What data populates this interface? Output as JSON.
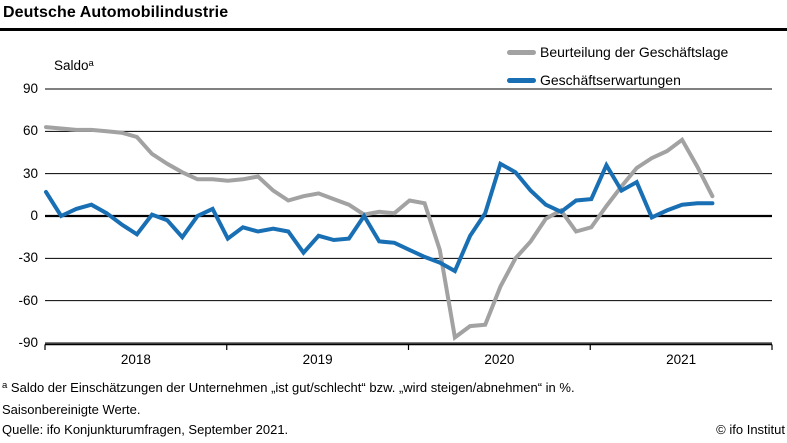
{
  "header": {
    "title": "Deutsche Automobilindustrie"
  },
  "chart_data": {
    "type": "line",
    "title": "Deutsche Automobilindustrie",
    "ylabel": "Saldo",
    "ylabel_superscript": "a",
    "ylim": [
      -90,
      90
    ],
    "yticks": [
      90,
      60,
      30,
      0,
      -30,
      -60,
      -90
    ],
    "grid": true,
    "legend_position": "top-right",
    "x_axis_year_labels": [
      "2018",
      "2019",
      "2020",
      "2021"
    ],
    "x_domain_months": 48,
    "months": [
      "2018-01",
      "2018-02",
      "2018-03",
      "2018-04",
      "2018-05",
      "2018-06",
      "2018-07",
      "2018-08",
      "2018-09",
      "2018-10",
      "2018-11",
      "2018-12",
      "2019-01",
      "2019-02",
      "2019-03",
      "2019-04",
      "2019-05",
      "2019-06",
      "2019-07",
      "2019-08",
      "2019-09",
      "2019-10",
      "2019-11",
      "2019-12",
      "2020-01",
      "2020-02",
      "2020-03",
      "2020-04",
      "2020-05",
      "2020-06",
      "2020-07",
      "2020-08",
      "2020-09",
      "2020-10",
      "2020-11",
      "2020-12",
      "2021-01",
      "2021-02",
      "2021-03",
      "2021-04",
      "2021-05",
      "2021-06",
      "2021-07",
      "2021-08",
      "2021-09"
    ],
    "series": [
      {
        "name": "Beurteilung der Geschäftslage",
        "color": "#a2a2a2",
        "values": [
          63,
          62,
          61,
          61,
          60,
          59,
          56,
          44,
          37,
          31,
          26,
          26,
          25,
          26,
          28,
          18,
          11,
          14,
          16,
          12,
          8,
          1,
          3,
          2,
          11,
          9,
          -24,
          -86,
          -78,
          -77,
          -50,
          -30,
          -18,
          -2,
          4,
          -11,
          -8,
          7,
          21,
          34,
          41,
          46,
          54,
          35,
          14
        ]
      },
      {
        "name": "Geschäftserwartungen",
        "color": "#196fb4",
        "values": [
          17,
          0,
          5,
          8,
          2,
          -6,
          -13,
          1,
          -3,
          -15,
          0,
          5,
          -16,
          -8,
          -11,
          -9,
          -11,
          -26,
          -14,
          -17,
          -16,
          0,
          -18,
          -19,
          -24,
          -29,
          -33,
          -39,
          -14,
          2,
          37,
          31,
          18,
          8,
          3,
          11,
          12,
          36,
          18,
          24,
          -1,
          4,
          8,
          9,
          9
        ]
      }
    ]
  },
  "footer": {
    "footnote_marker": "a",
    "footnote_line1": "Saldo der Einschätzungen der Unternehmen „ist gut/schlecht“ bzw. „wird steigen/abnehmen“ in %.",
    "footnote_line2": "Saisonbereinigte Werte.",
    "source_line": "Quelle: ifo Konjunkturumfragen, September 2021.",
    "copyright": "© ifo Institut"
  }
}
